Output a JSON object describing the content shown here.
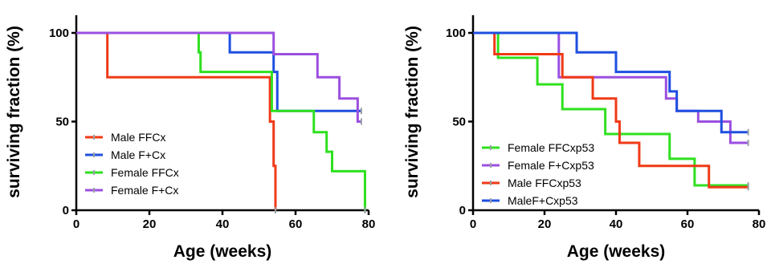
{
  "chart_data": [
    {
      "type": "line",
      "step": true,
      "xlabel": "Age (weeks)",
      "ylabel": "surviving fraction (%)",
      "xlim": [
        0,
        80
      ],
      "ylim": [
        0,
        100
      ],
      "xticks": [
        "0",
        "20",
        "40",
        "60",
        "80"
      ],
      "yticks": [
        "0",
        "50",
        "100"
      ],
      "legend_position": "bottom-left",
      "series": [
        {
          "name": "Male FFCx",
          "color": "#f03a17",
          "x": [
            0,
            8.5,
            49,
            53,
            54,
            54.5
          ],
          "y": [
            100,
            75,
            75,
            50,
            25,
            0
          ]
        },
        {
          "name": "Male F+Cx",
          "color": "#1f4fe0",
          "x": [
            0,
            42,
            54,
            55,
            78
          ],
          "y": [
            100,
            89,
            78,
            56,
            56
          ]
        },
        {
          "name": "Female FFCx",
          "color": "#2fe01f",
          "x": [
            0,
            33.5,
            34,
            53.5,
            65,
            68.5,
            70,
            78,
            79
          ],
          "y": [
            100,
            89,
            78,
            56,
            44,
            33,
            22,
            22,
            0
          ]
        },
        {
          "name": "Female F+Cx",
          "color": "#9b4fe0",
          "x": [
            0,
            54,
            66,
            72,
            77,
            78
          ],
          "y": [
            100,
            88,
            75,
            63,
            50,
            50
          ]
        }
      ]
    },
    {
      "type": "line",
      "step": true,
      "xlabel": "Age (weeks)",
      "ylabel": "surviving fraction (%)",
      "xlim": [
        0,
        80
      ],
      "ylim": [
        0,
        100
      ],
      "xticks": [
        "0",
        "20",
        "40",
        "60",
        "80"
      ],
      "yticks": [
        "0",
        "50",
        "100"
      ],
      "legend_position": "bottom-left",
      "series": [
        {
          "name": "Female FFCxp53",
          "color": "#2fe01f",
          "x": [
            0,
            7,
            18,
            25,
            37,
            55,
            62,
            77
          ],
          "y": [
            100,
            86,
            71,
            57,
            43,
            29,
            14,
            14
          ]
        },
        {
          "name": "Female F+Cxp53",
          "color": "#9b4fe0",
          "x": [
            0,
            24,
            54,
            57,
            63,
            72,
            77
          ],
          "y": [
            100,
            75,
            63,
            56,
            50,
            38,
            38
          ]
        },
        {
          "name": "Male FFCxp53",
          "color": "#f03a17",
          "x": [
            0,
            6,
            25,
            33.5,
            40,
            41,
            46.5,
            66,
            77
          ],
          "y": [
            100,
            88,
            75,
            63,
            50,
            38,
            25,
            13,
            13
          ]
        },
        {
          "name": "MaleF+Cxp53",
          "color": "#1f4fe0",
          "x": [
            0,
            29,
            40,
            55,
            57,
            69.5,
            71,
            77
          ],
          "y": [
            100,
            89,
            78,
            67,
            56,
            44,
            44,
            44
          ]
        }
      ]
    }
  ]
}
